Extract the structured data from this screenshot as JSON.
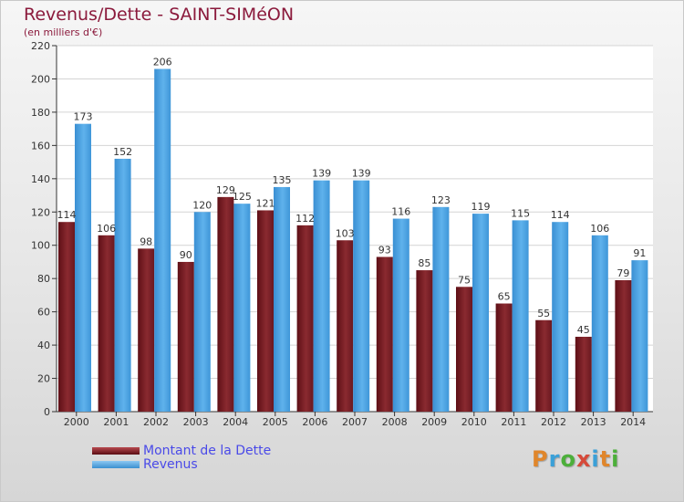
{
  "title": "Revenus/Dette - SAINT-SIMéON",
  "subtitle": "(en milliers d'€)",
  "logo": {
    "text": "Proxiti",
    "colors": [
      "#e0862b",
      "#3aa0d8",
      "#4caf3a",
      "#d64a3a",
      "#3aa0d8",
      "#e0862b",
      "#4caf3a"
    ]
  },
  "colors": {
    "dette": "#7a1e24",
    "revenus": "#4aa3e3",
    "title": "#8b1a3c",
    "legend_text": "#4a4ae8"
  },
  "chart_data": {
    "type": "bar",
    "title": "Revenus/Dette - SAINT-SIMéON",
    "ylabel": "(en milliers d'€)",
    "xlabel": "",
    "ylim": [
      0,
      220
    ],
    "yticks": [
      0,
      20,
      40,
      60,
      80,
      100,
      120,
      140,
      160,
      180,
      200,
      220
    ],
    "grid": true,
    "legend_position": "bottom-left",
    "categories": [
      "2000",
      "2001",
      "2002",
      "2003",
      "2004",
      "2005",
      "2006",
      "2007",
      "2008",
      "2009",
      "2010",
      "2011",
      "2012",
      "2013",
      "2014"
    ],
    "series": [
      {
        "name": "Montant de la Dette",
        "color": "#7a1e24",
        "values": [
          114,
          106,
          98,
          90,
          129,
          121,
          112,
          103,
          93,
          85,
          75,
          65,
          55,
          45,
          79
        ]
      },
      {
        "name": "Revenus",
        "color": "#4aa3e3",
        "values": [
          173,
          152,
          206,
          120,
          125,
          135,
          139,
          139,
          116,
          123,
          119,
          115,
          114,
          106,
          91
        ]
      }
    ]
  }
}
